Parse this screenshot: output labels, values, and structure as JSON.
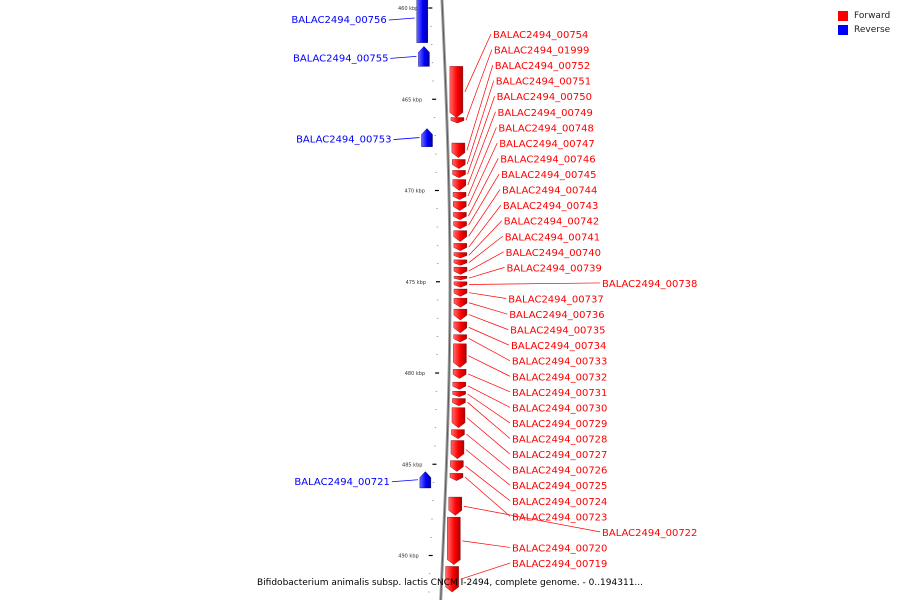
{
  "colors": {
    "forward": "#ff0000",
    "reverse": "#0000ff",
    "backbone": "#888888"
  },
  "legend": [
    {
      "label": "Forward",
      "color": "#ff0000"
    },
    {
      "label": "Reverse",
      "color": "#0000ff"
    }
  ],
  "caption": "Bifidobacterium animalis subsp. lactis CNCM I-2494, complete genome. - 0..194311...",
  "ticks": [
    {
      "value": 460,
      "label": "460 kbp"
    },
    {
      "value": 465,
      "label": "465 kbp"
    },
    {
      "value": 470,
      "label": "470 kbp"
    },
    {
      "value": 475,
      "label": "475 kbp"
    },
    {
      "value": 480,
      "label": "480 kbp"
    },
    {
      "value": 485,
      "label": "485 kbp"
    },
    {
      "value": 490,
      "label": "490 kbp"
    }
  ],
  "reverse_genes": [
    {
      "name": "BALAC2494_00756",
      "start": 459.2,
      "end": 461.9
    },
    {
      "name": "BALAC2494_00755",
      "start": 462.1,
      "end": 463.2
    },
    {
      "name": "BALAC2494_00753",
      "start": 466.6,
      "end": 467.6
    },
    {
      "name": "BALAC2494_00721",
      "start": 485.4,
      "end": 486.3
    }
  ],
  "forward_genes": [
    {
      "name": "BALAC2494_00754",
      "start": 463.2,
      "end": 466.0
    },
    {
      "name": "BALAC2494_01999",
      "start": 466.0,
      "end": 466.3
    },
    {
      "name": "BALAC2494_00752",
      "start": 467.4,
      "end": 468.2
    },
    {
      "name": "BALAC2494_00751",
      "start": 468.3,
      "end": 468.8
    },
    {
      "name": "BALAC2494_00750",
      "start": 468.9,
      "end": 469.3
    },
    {
      "name": "BALAC2494_00749",
      "start": 469.4,
      "end": 470.0
    },
    {
      "name": "BALAC2494_00748",
      "start": 470.1,
      "end": 470.5
    },
    {
      "name": "BALAC2494_00747",
      "start": 470.6,
      "end": 471.1
    },
    {
      "name": "BALAC2494_00746",
      "start": 471.2,
      "end": 471.6
    },
    {
      "name": "BALAC2494_00745",
      "start": 471.7,
      "end": 472.1
    },
    {
      "name": "BALAC2494_00744",
      "start": 472.2,
      "end": 472.8
    },
    {
      "name": "BALAC2494_00743",
      "start": 472.9,
      "end": 473.3
    },
    {
      "name": "BALAC2494_00742",
      "start": 473.4,
      "end": 473.7
    },
    {
      "name": "BALAC2494_00741",
      "start": 473.8,
      "end": 474.1
    },
    {
      "name": "BALAC2494_00740",
      "start": 474.2,
      "end": 474.6
    },
    {
      "name": "BALAC2494_00739",
      "start": 474.7,
      "end": 474.9
    },
    {
      "name": "BALAC2494_00738",
      "start": 475.0,
      "end": 475.3
    },
    {
      "name": "BALAC2494_00737",
      "start": 475.4,
      "end": 475.8
    },
    {
      "name": "BALAC2494_00736",
      "start": 475.9,
      "end": 476.4
    },
    {
      "name": "BALAC2494_00735",
      "start": 476.5,
      "end": 477.1
    },
    {
      "name": "BALAC2494_00734",
      "start": 477.2,
      "end": 477.8
    },
    {
      "name": "BALAC2494_00733",
      "start": 477.9,
      "end": 478.3
    },
    {
      "name": "BALAC2494_00732",
      "start": 478.4,
      "end": 479.7
    },
    {
      "name": "BALAC2494_00731",
      "start": 479.8,
      "end": 480.3
    },
    {
      "name": "BALAC2494_00730",
      "start": 480.5,
      "end": 480.9
    },
    {
      "name": "BALAC2494_00729",
      "start": 481.0,
      "end": 481.3
    },
    {
      "name": "BALAC2494_00728",
      "start": 481.4,
      "end": 481.8
    },
    {
      "name": "BALAC2494_00727",
      "start": 481.9,
      "end": 483.0
    },
    {
      "name": "BALAC2494_00726",
      "start": 483.1,
      "end": 483.6
    },
    {
      "name": "BALAC2494_00725",
      "start": 483.7,
      "end": 484.7
    },
    {
      "name": "BALAC2494_00724",
      "start": 484.8,
      "end": 485.4
    },
    {
      "name": "BALAC2494_00723",
      "start": 485.5,
      "end": 485.9
    },
    {
      "name": "BALAC2494_00722",
      "start": 486.8,
      "end": 487.8
    },
    {
      "name": "BALAC2494_00720",
      "start": 487.9,
      "end": 490.5
    },
    {
      "name": "BALAC2494_00719",
      "start": 490.6,
      "end": 492.0
    }
  ]
}
